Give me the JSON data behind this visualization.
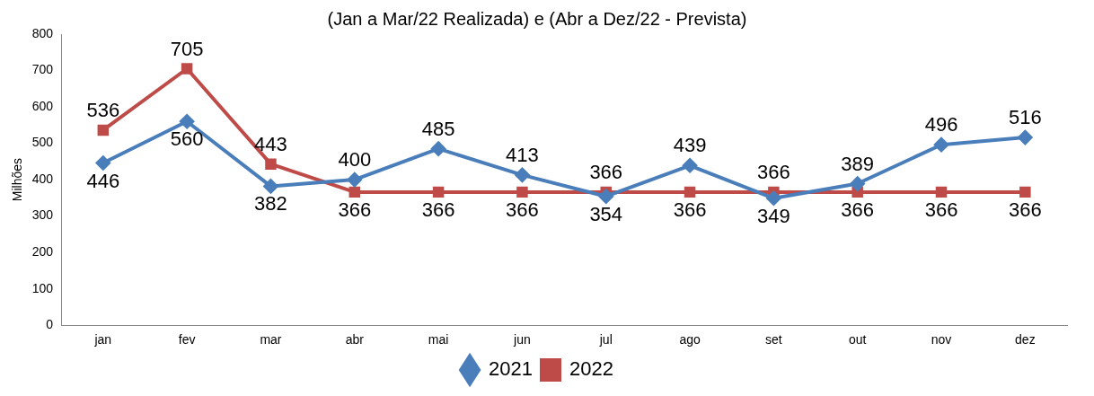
{
  "chart_data": {
    "type": "line",
    "title": "(Jan a Mar/22 Realizada) e (Abr a Dez/22 - Prevista)",
    "ylabel": "Milhões",
    "categories": [
      "jan",
      "fev",
      "mar",
      "abr",
      "mai",
      "jun",
      "jul",
      "ago",
      "set",
      "out",
      "nov",
      "dez"
    ],
    "series": [
      {
        "name": "2021",
        "color": "#4a7ebb",
        "marker": "diamond",
        "values": [
          446,
          560,
          382,
          400,
          485,
          413,
          354,
          439,
          349,
          389,
          496,
          516
        ]
      },
      {
        "name": "2022",
        "color": "#be4b48",
        "marker": "square",
        "values": [
          536,
          705,
          443,
          366,
          366,
          366,
          366,
          366,
          366,
          366,
          366,
          366
        ]
      }
    ],
    "ylim": [
      0,
      800
    ],
    "yticks": [
      0,
      100,
      200,
      300,
      400,
      500,
      600,
      700,
      800
    ],
    "grid": false,
    "legend": "bottom",
    "data_labels": true,
    "line_style": "solid"
  }
}
